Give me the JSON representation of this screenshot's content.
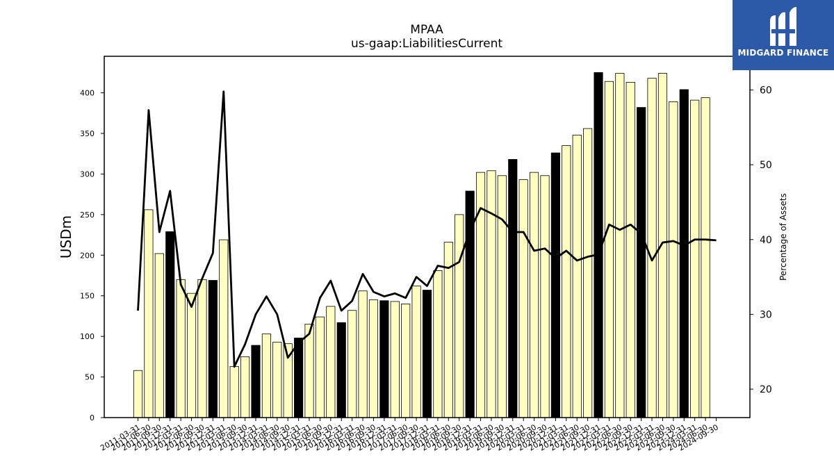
{
  "logo": {
    "text": "MIDGARD FINANCE",
    "icon": "midgard-m-logo-icon",
    "background": "#2c5aa8"
  },
  "chart_data": {
    "type": "bar",
    "title": "MPAA",
    "subtitle": "us-gaap:LiabilitiesCurrent",
    "ylabel": "USDm",
    "y2label": "Percentage of Assets",
    "ylim": [
      0,
      445
    ],
    "y2lim": [
      16.2,
      64.5
    ],
    "yticks": [
      0,
      50,
      100,
      150,
      200,
      250,
      300,
      350,
      400
    ],
    "y2ticks": [
      20,
      30,
      40,
      50,
      60
    ],
    "grid": false,
    "bar_colors": {
      "quarter": "#ffffc0",
      "fiscal_year_end": "#000000"
    },
    "line_color": "#000000",
    "categories": [
      "2011-03-31",
      "2011-06-30",
      "2011-09-30",
      "2011-12-31",
      "2012-03-31",
      "2012-06-30",
      "2012-09-30",
      "2012-12-31",
      "2013-03-31",
      "2013-06-30",
      "2013-09-30",
      "2013-12-31",
      "2014-03-31",
      "2014-06-30",
      "2014-09-30",
      "2014-12-31",
      "2015-03-31",
      "2015-06-30",
      "2015-09-30",
      "2015-12-31",
      "2016-03-31",
      "2016-06-30",
      "2016-09-30",
      "2016-12-31",
      "2017-03-31",
      "2017-06-30",
      "2017-09-30",
      "2017-12-31",
      "2018-03-31",
      "2018-06-30",
      "2018-09-30",
      "2018-12-31",
      "2019-03-31",
      "2019-06-30",
      "2019-09-30",
      "2019-12-31",
      "2020-03-31",
      "2020-06-30",
      "2020-09-30",
      "2020-12-31",
      "2021-03-31",
      "2021-06-30",
      "2021-09-30",
      "2021-12-31",
      "2022-03-31",
      "2022-06-30",
      "2022-09-30",
      "2022-12-31",
      "2023-03-31",
      "2023-06-30",
      "2023-09-30",
      "2023-12-31",
      "2024-03-31",
      "2024-06-30",
      "2024-09-30"
    ],
    "values": [
      58,
      256,
      202,
      229,
      170,
      153,
      170,
      169,
      219,
      63,
      75,
      89,
      103,
      93,
      91,
      98,
      115,
      124,
      137,
      117,
      132,
      156,
      145,
      144,
      143,
      140,
      162,
      157,
      181,
      216,
      250,
      279,
      302,
      304,
      298,
      318,
      293,
      302,
      298,
      326,
      335,
      348,
      356,
      425,
      414,
      424,
      413,
      382,
      418,
      424,
      389,
      404,
      391,
      394,
      0
    ],
    "fiscal_year_end_flags": [
      false,
      false,
      false,
      true,
      false,
      false,
      false,
      true,
      false,
      false,
      false,
      true,
      false,
      false,
      false,
      true,
      false,
      false,
      false,
      true,
      false,
      false,
      false,
      true,
      false,
      false,
      false,
      true,
      false,
      false,
      false,
      true,
      false,
      false,
      false,
      true,
      false,
      false,
      false,
      true,
      false,
      false,
      false,
      true,
      false,
      false,
      false,
      true,
      false,
      false,
      false,
      true,
      false,
      false,
      false
    ],
    "series": [
      {
        "axis": "right",
        "values": [
          30.5,
          57.3,
          41.0,
          46.5,
          34.0,
          31.0,
          34.8,
          38.2,
          59.8,
          23.0,
          26.0,
          30.0,
          32.4,
          30.0,
          24.2,
          26.2,
          27.4,
          32.2,
          34.5,
          30.5,
          31.8,
          35.4,
          33.0,
          32.4,
          32.8,
          32.2,
          35.0,
          33.8,
          36.5,
          36.2,
          37.0,
          41.2,
          44.2,
          43.5,
          42.7,
          41.0,
          41.0,
          38.5,
          38.8,
          37.5,
          38.5,
          37.2,
          37.7,
          38.0,
          42.0,
          41.3,
          42.0,
          40.8,
          37.2,
          39.6,
          39.8,
          39.2,
          40.0,
          40.0,
          39.9
        ]
      }
    ]
  }
}
